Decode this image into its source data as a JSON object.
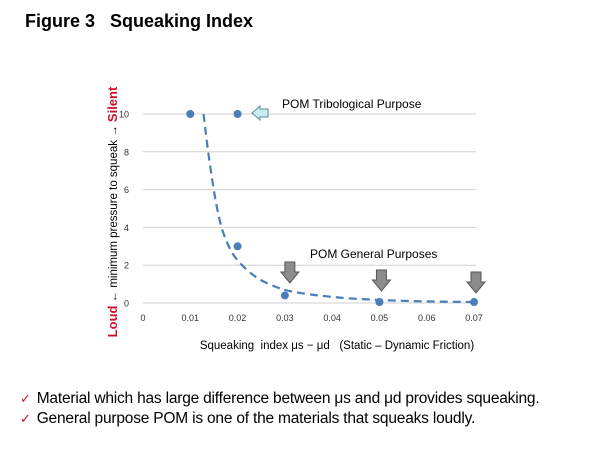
{
  "title": "Figure 3   Squeaking Index",
  "chart_data": {
    "type": "scatter",
    "xlabel": "Squeaking  index μs − μd   (Static – Dynamic Friction)",
    "ylabel": {
      "loud": "Loud",
      "middle": "← minimum pressure to squeak →",
      "silent": "Silent"
    },
    "xlim": [
      0,
      0.07
    ],
    "ylim": [
      0,
      10
    ],
    "x_ticks": [
      "0",
      "0.01",
      "0.02",
      "0.03",
      "0.04",
      "0.05",
      "0.06",
      "0.07"
    ],
    "y_ticks": [
      "0",
      "2",
      "4",
      "6",
      "8",
      "10"
    ],
    "grid": "horizontal",
    "points": [
      {
        "x": 0.01,
        "y": 10
      },
      {
        "x": 0.02,
        "y": 10
      },
      {
        "x": 0.02,
        "y": 3
      },
      {
        "x": 0.03,
        "y": 0.4
      },
      {
        "x": 0.05,
        "y": 0.05
      },
      {
        "x": 0.07,
        "y": 0.05
      }
    ],
    "trendline": "dashed",
    "annotations": [
      {
        "text": "POM Tribological Purpose",
        "arrow": "left",
        "target_x": 0.02,
        "target_y": 10
      },
      {
        "text": "POM General Purposes",
        "arrow": "down",
        "targets_x": [
          0.03,
          0.05,
          0.07
        ]
      }
    ],
    "colors": {
      "point": "#4a7ebb",
      "trendline": "#4a7ebb",
      "loud_silent": "#d0102a",
      "tribological_arrow": "#c8ecef",
      "general_arrow": "#8c8c8c",
      "grid": "#d0d0d0"
    }
  },
  "bullets": [
    "Material which has large difference between μs and μd provides squeaking.",
    "General purpose POM is one of the materials that squeaks loudly."
  ]
}
